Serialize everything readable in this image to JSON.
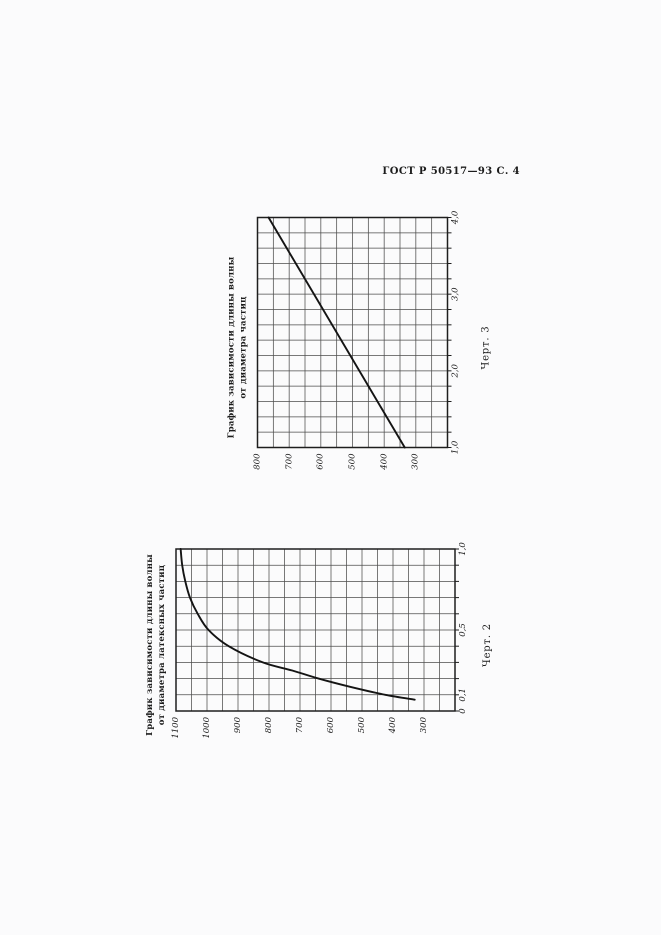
{
  "page": {
    "header": "ГОСТ Р 50517—93 С. 4"
  },
  "colors": {
    "paper": "#fbfbfc",
    "ink": "#1c1c1c",
    "grid": "#4d4d4d",
    "curve": "#141414"
  },
  "chart_data": [
    {
      "name": "figure-2",
      "type": "line",
      "title_lines": [
        "График зависимости длины волны",
        "от диаметра латексных частиц"
      ],
      "caption": "Черт. 2",
      "rotation_on_page_deg": -90,
      "grid": true,
      "xlim": [
        0,
        1.0
      ],
      "ylim": [
        200,
        1100
      ],
      "x_grid_step": 0.1,
      "y_grid_step": 50,
      "x_ticks": {
        "values": [
          0,
          0.1,
          0.5,
          1.0
        ],
        "labels": [
          "0",
          "0,1",
          "0,5",
          "1,0"
        ]
      },
      "y_ticks": {
        "values": [
          1100,
          1000,
          900,
          800,
          700,
          600,
          500,
          400,
          300
        ],
        "labels": [
          "1100",
          "1000",
          "900",
          "800",
          "700",
          "600",
          "500",
          "400",
          "300"
        ]
      },
      "series": [
        {
          "x": [
            0.07,
            0.1,
            0.15,
            0.2,
            0.25,
            0.3,
            0.4,
            0.5,
            0.6,
            0.7,
            0.8,
            0.9,
            1.0
          ],
          "y": [
            330,
            425,
            540,
            640,
            725,
            820,
            930,
            995,
            1030,
            1055,
            1070,
            1080,
            1085
          ]
        }
      ]
    },
    {
      "name": "figure-3",
      "type": "line",
      "title_lines": [
        "График зависимости длины волны",
        "от диаметра частиц"
      ],
      "caption": "Черт. 3",
      "rotation_on_page_deg": -90,
      "grid": true,
      "xlim": [
        1.0,
        4.0
      ],
      "ylim": [
        200,
        800
      ],
      "x_grid_step": 0.2,
      "y_grid_step": 50,
      "x_ticks": {
        "values": [
          1.0,
          2.0,
          3.0,
          4.0
        ],
        "labels": [
          "1,0",
          "2,0",
          "3,0",
          "4,0"
        ]
      },
      "y_ticks": {
        "values": [
          800,
          700,
          600,
          500,
          400,
          300
        ],
        "labels": [
          "800",
          "700",
          "600",
          "500",
          "400",
          "300"
        ]
      },
      "series": [
        {
          "x": [
            1.0,
            4.0
          ],
          "y": [
            335,
            765
          ]
        }
      ]
    }
  ]
}
